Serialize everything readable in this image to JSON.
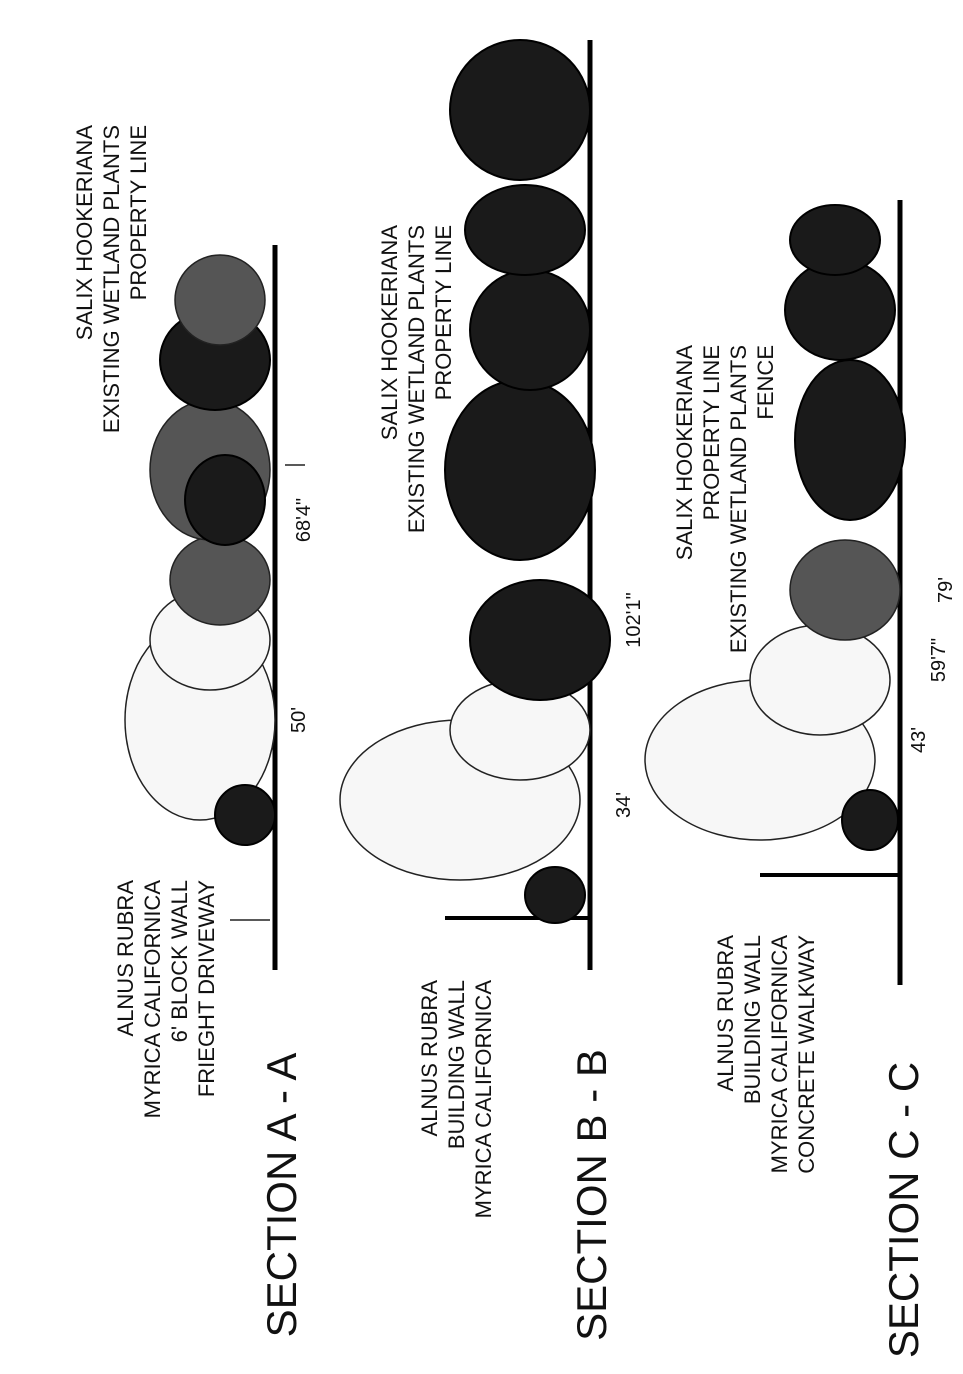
{
  "sections": [
    {
      "title": "SECTION A - A",
      "left_labels": [
        "ALNUS RUBRA",
        "MYRICA CALIFORNICA",
        "6' BLOCK WALL",
        "FRIEGHT DRIVEWAY"
      ],
      "right_labels": [
        "SALIX HOOKERIANA",
        "EXISTING WETLAND PLANTS",
        "PROPERTY LINE"
      ],
      "dimensions": [
        "50'",
        "68'4\""
      ]
    },
    {
      "title": "SECTION B - B",
      "left_labels": [
        "ALNUS RUBRA",
        "BUILDING WALL",
        "MYRICA CALIFORNICA"
      ],
      "right_labels": [
        "SALIX HOOKERIANA",
        "EXISTING WETLAND PLANTS",
        "PROPERTY LINE"
      ],
      "dimensions": [
        "34'",
        "102'1\""
      ]
    },
    {
      "title": "SECTION C - C",
      "left_labels": [
        "ALNUS RUBRA",
        "BUILDING WALL",
        "MYRICA CALIFORNICA",
        "CONCRETE WALKWAY"
      ],
      "right_labels": [
        "SALIX HOOKERIANA",
        "PROPERTY LINE",
        "EXISTING WETLAND PLANTS",
        "FENCE"
      ],
      "dimensions": [
        "43'",
        "59'7\"",
        "79'"
      ]
    }
  ]
}
